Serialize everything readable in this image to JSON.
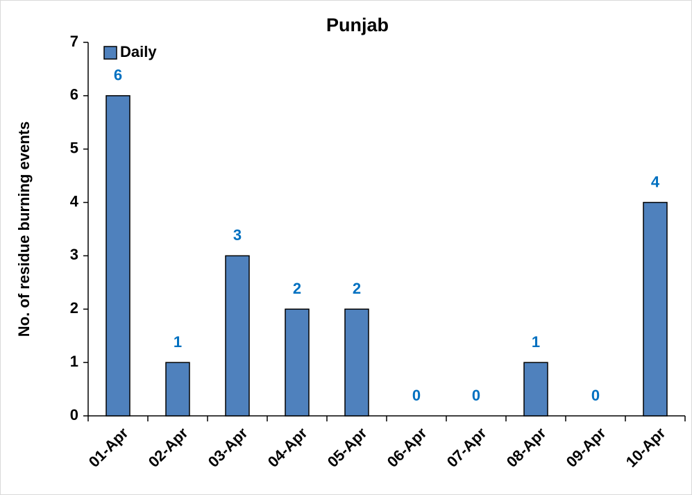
{
  "chart_data": {
    "type": "bar",
    "title": "Punjab",
    "y_label": "No. of residue burning events",
    "categories": [
      "01-Apr",
      "02-Apr",
      "03-Apr",
      "04-Apr",
      "05-Apr",
      "06-Apr",
      "07-Apr",
      "08-Apr",
      "09-Apr",
      "10-Apr"
    ],
    "series": [
      {
        "name": "Daily",
        "color": "#4f81bd",
        "values": [
          6,
          1,
          3,
          2,
          2,
          0,
          0,
          1,
          0,
          4
        ]
      }
    ],
    "value_label_color": "#0070c0",
    "ylim": [
      0,
      7
    ],
    "yticks": [
      0,
      1,
      2,
      3,
      4,
      5,
      6,
      7
    ],
    "grid": false,
    "legend": "upper left"
  }
}
